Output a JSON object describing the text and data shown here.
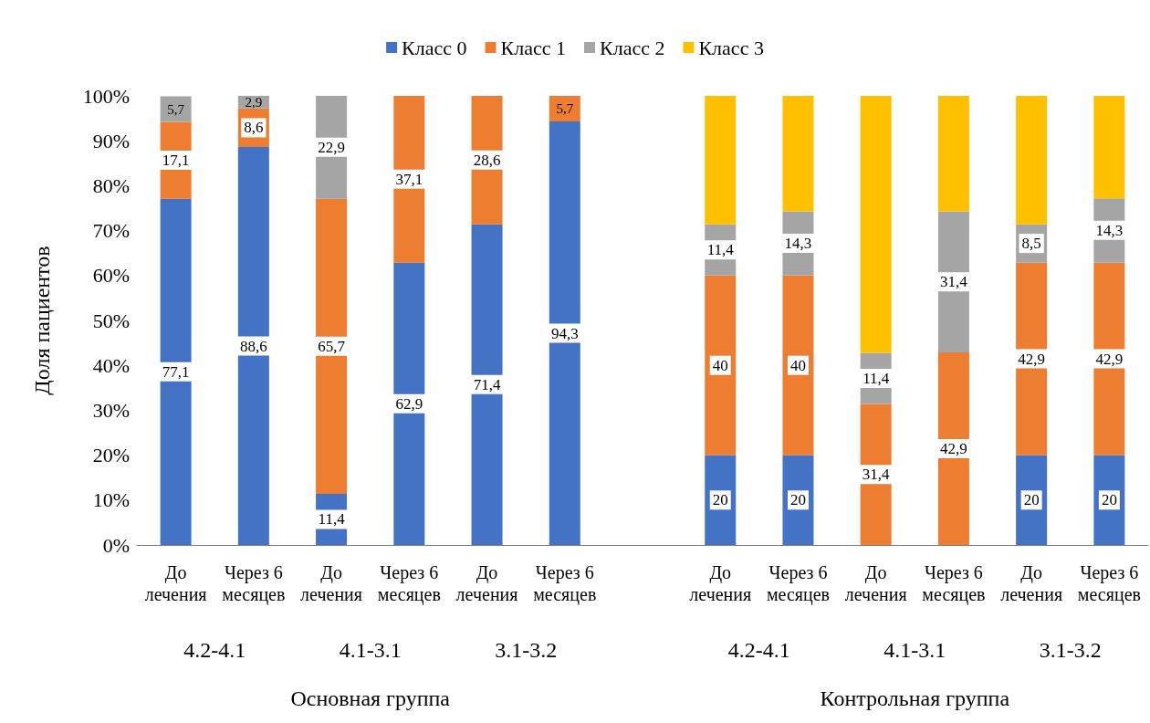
{
  "chart_data": {
    "type": "bar",
    "stacked": true,
    "ylabel": "Доля пациентов",
    "categories": [
      "До лечения",
      "Через 6 месяцев",
      "До лечения",
      "Через 6 месяцев",
      "До лечения",
      "Через 6 месяцев",
      null,
      "До лечения",
      "Через 6 месяцев",
      "До лечения",
      "Через 6 месяцев",
      "До лечения",
      "Через 6 месяцев"
    ],
    "series": [
      {
        "name": "Класс 0",
        "color": "#4472c4",
        "values": [
          77.1,
          88.6,
          11.4,
          62.9,
          71.4,
          94.3,
          null,
          20,
          20,
          0,
          0,
          20,
          20
        ],
        "value_labels": [
          "77,1",
          "88,6",
          "11,4",
          "62,9",
          "71,4",
          "94,3",
          null,
          "20",
          "20",
          null,
          null,
          "20",
          "20"
        ]
      },
      {
        "name": "Класс 1",
        "color": "#ed7d31",
        "values": [
          17.1,
          8.6,
          65.7,
          37.1,
          28.6,
          5.7,
          null,
          40,
          40,
          31.4,
          42.9,
          42.9,
          42.9
        ],
        "value_labels": [
          "17,1",
          "8,6",
          "65,7",
          "37,1",
          "28,6",
          "5,7",
          null,
          "40",
          "40",
          "31,4",
          "42,9",
          "42,9",
          "42,9"
        ]
      },
      {
        "name": "Класс 2",
        "color": "#a5a5a5",
        "values": [
          5.7,
          2.9,
          22.9,
          0,
          0,
          0,
          null,
          11.4,
          14.3,
          11.4,
          31.4,
          8.5,
          14.3
        ],
        "value_labels": [
          "5,7",
          "2,9",
          "22,9",
          null,
          null,
          null,
          null,
          "11,4",
          "14,3",
          "11,4",
          "31,4",
          "8,5",
          "14,3"
        ]
      },
      {
        "name": "Класс 3",
        "color": "#ffc000",
        "values": [
          0,
          0,
          0,
          0,
          0,
          0,
          null,
          28.6,
          25.7,
          57.2,
          25.7,
          28.6,
          22.8
        ],
        "value_labels": [
          null,
          null,
          null,
          null,
          null,
          null,
          null,
          null,
          null,
          null,
          null,
          null,
          null
        ]
      }
    ],
    "ylim": [
      0,
      100
    ],
    "yticks": [
      {
        "value": 0,
        "label": "0%"
      },
      {
        "value": 10,
        "label": "10%"
      },
      {
        "value": 20,
        "label": "20%"
      },
      {
        "value": 30,
        "label": "30%"
      },
      {
        "value": 40,
        "label": "40%"
      },
      {
        "value": 50,
        "label": "50%"
      },
      {
        "value": 60,
        "label": "60%"
      },
      {
        "value": 70,
        "label": "70%"
      },
      {
        "value": 80,
        "label": "80%"
      },
      {
        "value": 90,
        "label": "90%"
      },
      {
        "value": 100,
        "label": "100%"
      }
    ],
    "grid": false,
    "legend": "top",
    "annotations": [
      "4.2-4.1",
      "4.1-3.1",
      "3.1-3.2",
      "4.2-4.1",
      "4.1-3.1",
      "3.1-3.2",
      "Основная группа",
      "Контрольная группа"
    ]
  }
}
